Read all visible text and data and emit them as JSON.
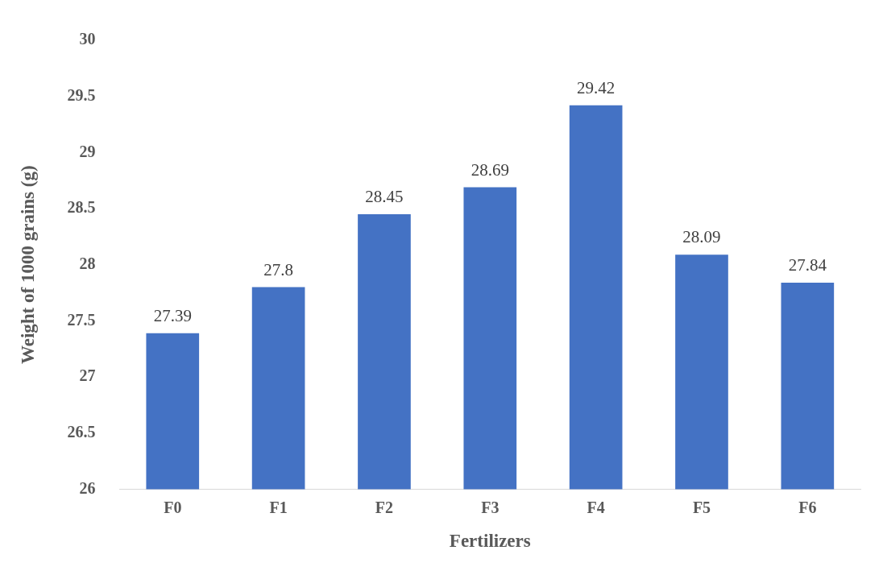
{
  "chart_data": {
    "type": "bar",
    "xlabel": "Fertilizers",
    "ylabel": "Weight of 1000 grains (g)",
    "categories": [
      "F0",
      "F1",
      "F2",
      "F3",
      "F4",
      "F5",
      "F6"
    ],
    "values": [
      27.39,
      27.8,
      28.45,
      28.69,
      29.42,
      28.09,
      27.84
    ],
    "color": "#4472c4",
    "ylim": [
      26,
      30
    ],
    "yticks": [
      26,
      26.5,
      27,
      27.5,
      28,
      28.5,
      29,
      29.5,
      30
    ],
    "grid": false,
    "legend": false,
    "data_labels": true
  }
}
